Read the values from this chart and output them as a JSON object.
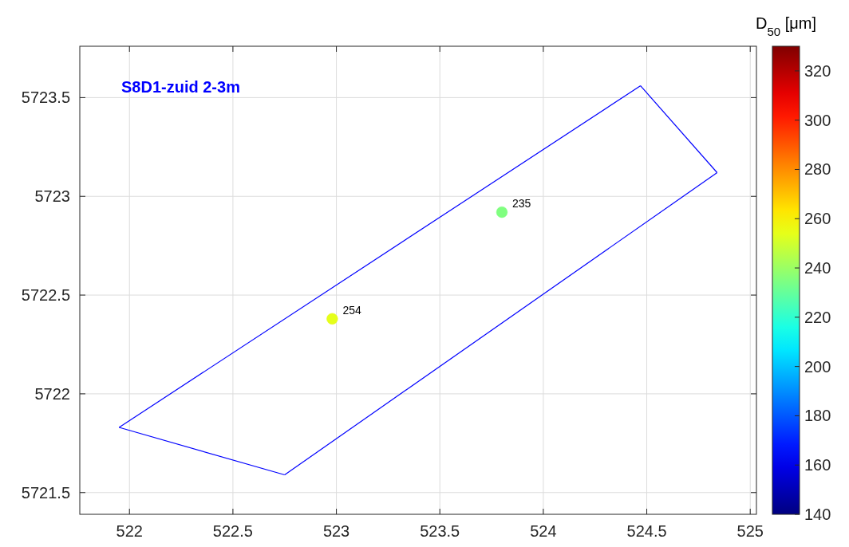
{
  "chart_data": {
    "type": "scatter",
    "title": "S8D1-zuid 2-3m",
    "xlim": [
      521.76,
      525.03
    ],
    "xticks": [
      522,
      522.5,
      523,
      523.5,
      524,
      524.5,
      525
    ],
    "ylim": [
      5721.39,
      5723.76
    ],
    "yticks": [
      5721.5,
      5722,
      5722.5,
      5723,
      5723.5
    ],
    "grid": true,
    "clabel": "D$_{50}$ [μm]",
    "clim": [
      140,
      330
    ],
    "cticks": [
      140,
      160,
      180,
      200,
      220,
      240,
      260,
      280,
      300,
      320
    ],
    "annotations": [
      {
        "text": "254",
        "x": 522.98,
        "y": 5722.38
      },
      {
        "text": "235",
        "x": 523.8,
        "y": 5722.92
      }
    ],
    "series": [
      {
        "type": "line",
        "color": "#0000ff",
        "x": [
          521.95,
          522.75
        ],
        "values": [
          5721.83,
          5721.59
        ]
      },
      {
        "type": "line",
        "color": "#0000ff",
        "x": [
          522.75,
          524.84
        ],
        "values": [
          5721.59,
          5723.12
        ]
      },
      {
        "type": "line",
        "color": "#0000ff",
        "x": [
          524.47,
          524.84
        ],
        "values": [
          5723.56,
          5723.12
        ]
      },
      {
        "type": "line",
        "color": "#0000ff",
        "x": [
          521.95,
          524.47
        ],
        "values": [
          5721.83,
          5723.56
        ]
      },
      {
        "marker": "circle",
        "x": [
          522.98,
          523.8
        ],
        "values": [
          5722.38,
          5722.92
        ],
        "cvalues": [
          254,
          235
        ],
        "colors": [
          "#e6f516",
          "#80ff80"
        ]
      }
    ]
  }
}
